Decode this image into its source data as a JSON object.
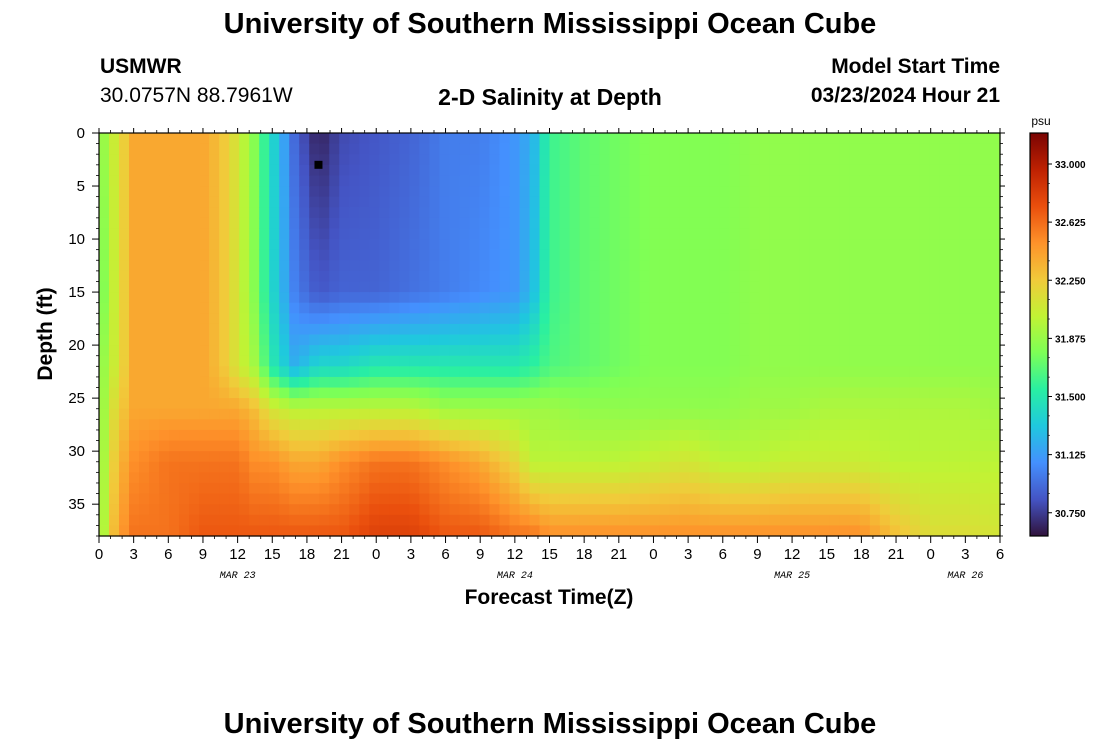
{
  "header": {
    "title": "University of Southern Mississippi Ocean Cube",
    "station_id": "USMWR",
    "coords": "30.0757N  88.7961W",
    "subtitle": "2-D Salinity at Depth",
    "model_start_label": "Model Start Time",
    "model_start_value": "03/23/2024 Hour 21"
  },
  "footer": {
    "title": "University of Southern Mississippi Ocean Cube"
  },
  "chart_data": {
    "type": "heatmap",
    "title": "2-D Salinity at Depth",
    "xlabel": "Forecast Time(Z)",
    "ylabel": "Depth (ft)",
    "x_tick_labels": [
      "0",
      "3",
      "6",
      "9",
      "12",
      "15",
      "18",
      "21",
      "0",
      "3",
      "6",
      "9",
      "12",
      "15",
      "18",
      "21",
      "0",
      "3",
      "6",
      "9",
      "12",
      "15",
      "18",
      "21",
      "0",
      "3",
      "6"
    ],
    "x_hours": [
      0,
      3,
      6,
      9,
      12,
      15,
      18,
      21,
      24,
      27,
      30,
      33,
      36,
      39,
      42,
      45,
      48,
      51,
      54,
      57,
      60,
      63,
      66,
      69,
      72,
      75,
      78
    ],
    "xlim_hours": [
      0,
      78
    ],
    "date_labels": [
      {
        "label": "MAR 23",
        "hour": 12
      },
      {
        "label": "MAR 24",
        "hour": 36
      },
      {
        "label": "MAR 25",
        "hour": 60
      },
      {
        "label": "MAR 26",
        "hour": 75
      }
    ],
    "y_ticks": [
      0,
      5,
      10,
      15,
      20,
      25,
      30,
      35
    ],
    "ylim": [
      0,
      38
    ],
    "y_inverted": true,
    "colorbar": {
      "unit": "psu",
      "range": [
        30.6,
        33.2
      ],
      "tick_labels": [
        "33.000",
        "32.625",
        "32.250",
        "31.875",
        "31.500",
        "31.125",
        "30.750"
      ],
      "tick_values": [
        33.0,
        32.625,
        32.25,
        31.875,
        31.5,
        31.125,
        30.75
      ],
      "color_stops": [
        "#30123b",
        "#4454c4",
        "#4490fe",
        "#1fc8de",
        "#29efa2",
        "#7dff56",
        "#c1f334",
        "#f1ca3a",
        "#fe922a",
        "#ea4f0d",
        "#be2102",
        "#7a0403"
      ]
    },
    "marker": {
      "hour": 19,
      "depth_ft": 3
    },
    "salinity_grid": {
      "x_hours": [
        0,
        1.5,
        3,
        6,
        9,
        10.5,
        12,
        13.5,
        15,
        17,
        19,
        21,
        24,
        27,
        30,
        33,
        36,
        37.5,
        39,
        42,
        45,
        48,
        51,
        54,
        57,
        60,
        63,
        66,
        69,
        72,
        75,
        78
      ],
      "depths_ft": [
        0,
        10,
        20,
        24,
        27,
        30,
        33,
        36,
        38
      ],
      "values": [
        [
          31.8,
          31.7,
          31.8,
          31.8,
          31.8,
          31.8
        ],
        [
          32.1,
          32.1,
          32.1,
          32.2,
          32.3,
          32.4
        ],
        [
          32.4,
          32.4,
          32.4,
          32.4,
          32.5,
          32.6
        ],
        [
          32.4,
          32.4,
          32.4,
          32.4,
          32.6,
          32.6
        ],
        [
          32.4,
          32.4,
          32.4,
          32.4,
          32.6,
          32.7
        ],
        [
          32.3,
          32.3,
          32.3,
          32.4,
          32.6,
          32.7
        ],
        [
          32.1,
          32.1,
          32.1,
          32.4,
          32.6,
          32.7
        ],
        [
          31.8,
          31.8,
          31.9,
          32.3,
          32.5,
          32.7
        ],
        [
          31.4,
          31.4,
          31.5,
          32.1,
          32.5,
          32.7
        ],
        [
          30.9,
          31.0,
          31.2,
          32.0,
          32.4,
          32.7
        ],
        [
          30.65,
          30.85,
          31.4,
          32.0,
          32.4,
          32.7
        ],
        [
          30.8,
          30.9,
          31.4,
          32.0,
          32.5,
          32.7
        ],
        [
          30.85,
          30.9,
          31.5,
          32.0,
          32.6,
          32.8
        ],
        [
          30.9,
          30.95,
          31.5,
          32.0,
          32.6,
          32.8
        ],
        [
          31.0,
          31.0,
          31.5,
          31.9,
          32.5,
          32.7
        ],
        [
          31.0,
          31.05,
          31.5,
          31.9,
          32.4,
          32.7
        ],
        [
          31.1,
          31.1,
          31.5,
          31.9,
          32.2,
          32.6
        ],
        [
          31.2,
          31.25,
          31.55,
          31.9,
          32.0,
          32.6
        ],
        [
          31.6,
          31.6,
          31.65,
          31.9,
          32.0,
          32.5
        ],
        [
          31.7,
          31.7,
          31.7,
          31.85,
          32.0,
          32.5
        ],
        [
          31.75,
          31.75,
          31.75,
          31.85,
          32.0,
          32.5
        ],
        [
          31.8,
          31.8,
          31.8,
          31.85,
          32.05,
          32.5
        ],
        [
          31.8,
          31.8,
          31.8,
          31.85,
          32.1,
          32.5
        ],
        [
          31.8,
          31.8,
          31.8,
          31.85,
          32.0,
          32.5
        ],
        [
          31.85,
          31.85,
          31.85,
          31.9,
          32.0,
          32.5
        ],
        [
          31.85,
          31.85,
          31.85,
          31.9,
          32.05,
          32.5
        ],
        [
          31.85,
          31.85,
          31.85,
          31.95,
          32.05,
          32.5
        ],
        [
          31.85,
          31.85,
          31.85,
          31.95,
          32.05,
          32.5
        ],
        [
          31.85,
          31.85,
          31.85,
          31.95,
          32.0,
          32.3
        ],
        [
          31.85,
          31.85,
          31.85,
          31.95,
          32.0,
          32.15
        ],
        [
          31.85,
          31.85,
          31.85,
          31.95,
          32.0,
          32.15
        ],
        [
          31.85,
          31.85,
          31.85,
          31.9,
          32.0,
          32.1
        ]
      ],
      "value_depths_ft": [
        0,
        15,
        22,
        26,
        31,
        38
      ]
    }
  }
}
